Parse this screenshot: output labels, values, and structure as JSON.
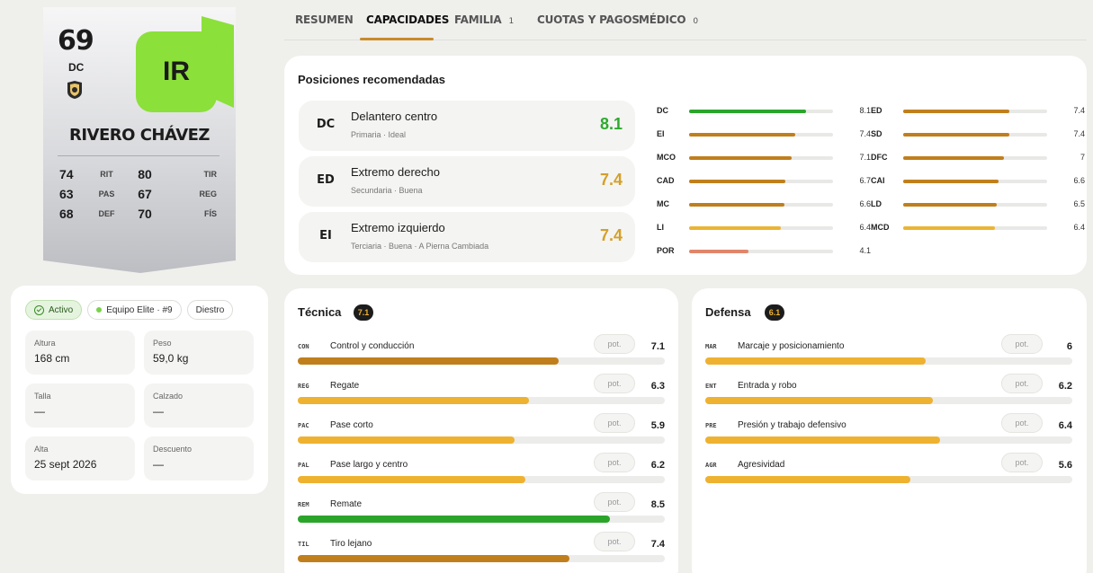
{
  "player": {
    "overall": "69",
    "position": "DC",
    "initials": "IR",
    "name": "RIVERO CHÁVEZ",
    "stats": [
      {
        "v1": "74",
        "l1": "RIT",
        "v2": "80",
        "l2": "TIR"
      },
      {
        "v1": "63",
        "l1": "PAS",
        "v2": "67",
        "l2": "REG"
      },
      {
        "v1": "68",
        "l1": "DEF",
        "v2": "70",
        "l2": "FÍS"
      }
    ]
  },
  "info": {
    "chips": [
      "Activo",
      "Equipo Elite · #9",
      "Diestro"
    ],
    "fields": [
      {
        "label": "Altura",
        "value": "168 cm"
      },
      {
        "label": "Peso",
        "value": "59,0 kg"
      },
      {
        "label": "Talla",
        "value": "—"
      },
      {
        "label": "Calzado",
        "value": "—"
      },
      {
        "label": "Alta",
        "value": "25 sept 2026"
      },
      {
        "label": "Descuento",
        "value": "—"
      }
    ]
  },
  "tabs": [
    {
      "label": "RESUMEN",
      "count": ""
    },
    {
      "label": "CAPACIDADES",
      "count": ""
    },
    {
      "label": "FAMILIA",
      "count": "1"
    },
    {
      "label": "CUOTAS Y PAGOS",
      "count": ""
    },
    {
      "label": "MÉDICO",
      "count": "0"
    }
  ],
  "positions": {
    "title": "Posiciones recomendadas",
    "cards": [
      {
        "abbr": "DC",
        "name": "Delantero centro",
        "sub": "Primaria · Ideal",
        "score": "8.1",
        "color": "#2eaa2e"
      },
      {
        "abbr": "ED",
        "name": "Extremo derecho",
        "sub": "Secundaria · Buena",
        "score": "7.4",
        "color": "#d4a02a"
      },
      {
        "abbr": "EI",
        "name": "Extremo izquierdo",
        "sub": "Terciaria · Buena · A Pierna Cambiada",
        "score": "7.4",
        "color": "#d4a02a"
      }
    ],
    "ratings_left": [
      {
        "pos": "DC",
        "value": 8.1,
        "label": "8.1",
        "color": "#2aa52a"
      },
      {
        "pos": "EI",
        "value": 7.4,
        "label": "7.4",
        "color": "#c07f1c"
      },
      {
        "pos": "MCO",
        "value": 7.1,
        "label": "7.1",
        "color": "#c07f1c"
      },
      {
        "pos": "CAD",
        "value": 6.7,
        "label": "6.7",
        "color": "#c07f1c"
      },
      {
        "pos": "MC",
        "value": 6.6,
        "label": "6.6",
        "color": "#c07f1c"
      },
      {
        "pos": "LI",
        "value": 6.4,
        "label": "6.4",
        "color": "#eab533"
      },
      {
        "pos": "POR",
        "value": 4.1,
        "label": "4.1",
        "color": "#e0866a"
      }
    ],
    "ratings_right": [
      {
        "pos": "ED",
        "value": 7.4,
        "label": "7.4",
        "color": "#c07f1c"
      },
      {
        "pos": "SD",
        "value": 7.4,
        "label": "7.4",
        "color": "#c07f1c"
      },
      {
        "pos": "DFC",
        "value": 7,
        "label": "7",
        "color": "#c07f1c"
      },
      {
        "pos": "CAI",
        "value": 6.6,
        "label": "6.6",
        "color": "#c07f1c"
      },
      {
        "pos": "LD",
        "value": 6.5,
        "label": "6.5",
        "color": "#c07f1c"
      },
      {
        "pos": "MCD",
        "value": 6.4,
        "label": "6.4",
        "color": "#eab533"
      }
    ]
  },
  "tecnica": {
    "title": "Técnica",
    "badge": "7.1",
    "pot_label": "pot.",
    "rows": [
      {
        "abbr": "CON",
        "name": "Control y conducción",
        "value": 7.1,
        "label": "7.1",
        "color": "#c07f1c"
      },
      {
        "abbr": "REG",
        "name": "Regate",
        "value": 6.3,
        "label": "6.3",
        "color": "#eeb230"
      },
      {
        "abbr": "PAC",
        "name": "Pase corto",
        "value": 5.9,
        "label": "5.9",
        "color": "#eeb230"
      },
      {
        "abbr": "PAL",
        "name": "Pase largo y centro",
        "value": 6.2,
        "label": "6.2",
        "color": "#eeb230"
      },
      {
        "abbr": "REM",
        "name": "Remate",
        "value": 8.5,
        "label": "8.5",
        "color": "#2aa52a"
      },
      {
        "abbr": "TIL",
        "name": "Tiro lejano",
        "value": 7.4,
        "label": "7.4",
        "color": "#c07f1c"
      }
    ]
  },
  "defensa": {
    "title": "Defensa",
    "badge": "6.1",
    "pot_label": "pot.",
    "rows": [
      {
        "abbr": "MAR",
        "name": "Marcaje y posicionamiento",
        "value": 6,
        "label": "6",
        "color": "#eeb230"
      },
      {
        "abbr": "ENT",
        "name": "Entrada y robo",
        "value": 6.2,
        "label": "6.2",
        "color": "#eeb230"
      },
      {
        "abbr": "PRE",
        "name": "Presión y trabajo defensivo",
        "value": 6.4,
        "label": "6.4",
        "color": "#eeb230"
      },
      {
        "abbr": "AGR",
        "name": "Agresividad",
        "value": 5.6,
        "label": "5.6",
        "color": "#eeb230"
      }
    ]
  }
}
